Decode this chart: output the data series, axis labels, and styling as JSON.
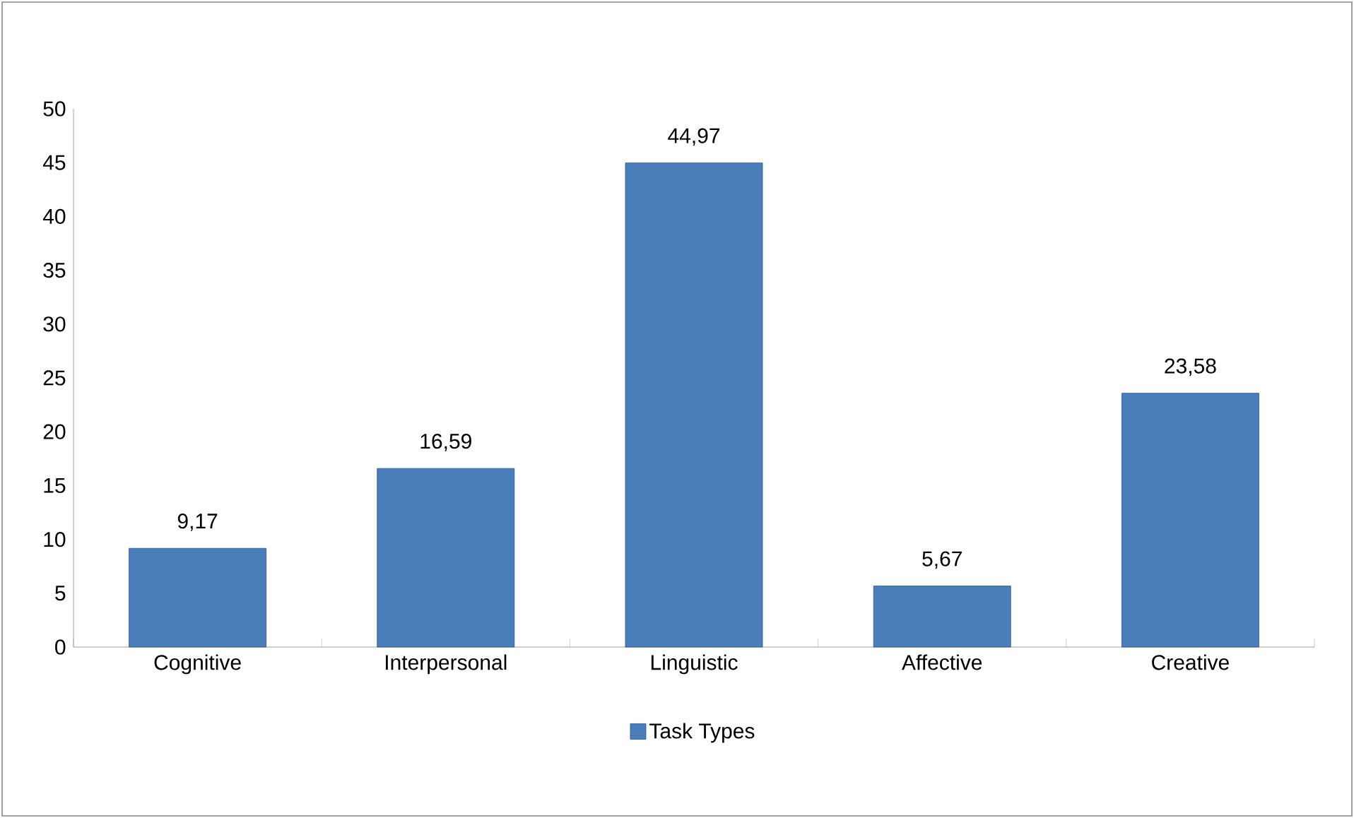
{
  "chart_data": {
    "type": "bar",
    "categories": [
      "Cognitive",
      "Interpersonal",
      "Linguistic",
      "Affective",
      "Creative"
    ],
    "series": [
      {
        "name": "Task Types",
        "color": "#4a7ebb",
        "values": [
          9.17,
          16.59,
          44.97,
          5.67,
          23.58
        ],
        "value_labels": [
          "9,17",
          "16,59",
          "44,97",
          "5,67",
          "23,58"
        ]
      }
    ],
    "ylim": [
      0,
      50
    ],
    "yticks": [
      0,
      5,
      10,
      15,
      20,
      25,
      30,
      35,
      40,
      45,
      50
    ],
    "grid": false,
    "legend": "bottom"
  }
}
